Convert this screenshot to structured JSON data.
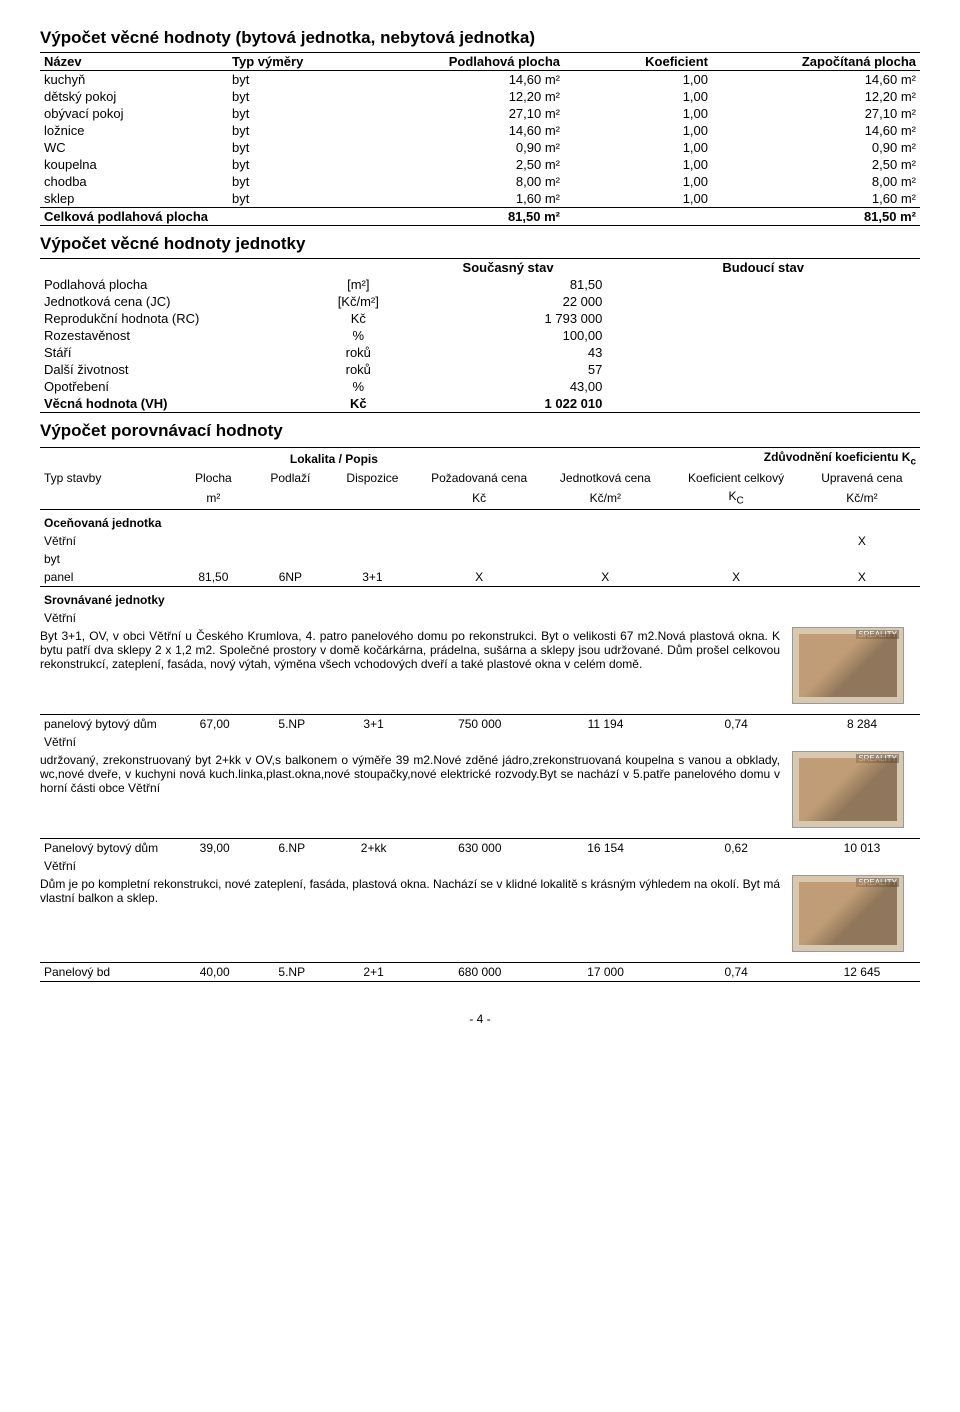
{
  "section1": {
    "title": "Výpočet věcné hodnoty (bytová jednotka, nebytová jednotka)",
    "headers": [
      "Název",
      "Typ výměry",
      "Podlahová plocha",
      "Koeficient",
      "Započítaná plocha"
    ],
    "rows": [
      {
        "n": "kuchyň",
        "t": "byt",
        "p": "14,60 m²",
        "k": "1,00",
        "z": "14,60 m²"
      },
      {
        "n": "dětský pokoj",
        "t": "byt",
        "p": "12,20 m²",
        "k": "1,00",
        "z": "12,20 m²"
      },
      {
        "n": "obývací pokoj",
        "t": "byt",
        "p": "27,10 m²",
        "k": "1,00",
        "z": "27,10 m²"
      },
      {
        "n": "ložnice",
        "t": "byt",
        "p": "14,60 m²",
        "k": "1,00",
        "z": "14,60 m²"
      },
      {
        "n": "WC",
        "t": "byt",
        "p": "0,90 m²",
        "k": "1,00",
        "z": "0,90 m²"
      },
      {
        "n": "koupelna",
        "t": "byt",
        "p": "2,50 m²",
        "k": "1,00",
        "z": "2,50 m²"
      },
      {
        "n": "chodba",
        "t": "byt",
        "p": "8,00 m²",
        "k": "1,00",
        "z": "8,00 m²"
      },
      {
        "n": "sklep",
        "t": "byt",
        "p": "1,60 m²",
        "k": "1,00",
        "z": "1,60 m²"
      }
    ],
    "sum": {
      "n": "Celková podlahová plocha",
      "p": "81,50 m²",
      "z": "81,50 m²"
    }
  },
  "section2": {
    "title": "Výpočet věcné hodnoty jednotky",
    "colA": "Současný stav",
    "colB": "Budoucí stav",
    "rows": [
      {
        "l": "Podlahová plocha",
        "u": "[m²]",
        "v": "81,50"
      },
      {
        "l": "Jednotková cena (JC)",
        "u": "[Kč/m²]",
        "v": "22 000"
      },
      {
        "l": "Reprodukční hodnota (RC)",
        "u": "Kč",
        "v": "1 793 000"
      },
      {
        "l": "Rozestavěnost",
        "u": "%",
        "v": "100,00"
      },
      {
        "l": "Stáří",
        "u": "roků",
        "v": "43"
      },
      {
        "l": "Další životnost",
        "u": "roků",
        "v": "57"
      },
      {
        "l": "Opotřebení",
        "u": "%",
        "v": "43,00"
      }
    ],
    "final": {
      "l": "Věcná hodnota (VH)",
      "u": "Kč",
      "v": "1 022 010"
    }
  },
  "section3": {
    "title": "Výpočet porovnávací hodnoty",
    "lokalita_label": "Lokalita / Popis",
    "koef_label": "Zdůvodnění koeficientu K",
    "koef_sub": "c",
    "headers": [
      "Typ stavby",
      "Plocha",
      "Podlaží",
      "Dispozice",
      "Požadovaná cena",
      "Jednotková cena",
      "Koeficient celkový",
      "Upravená cena"
    ],
    "units": [
      "",
      "m²",
      "",
      "",
      "Kč",
      "Kč/m²",
      "K",
      "Kč/m²"
    ],
    "unit_sub": "C",
    "ocen_label": "Oceňovaná jednotka",
    "srov_label": "Srovnávané jednotky",
    "vetrni": "Větřní",
    "byt": "byt",
    "panel_row": {
      "typ": "panel",
      "pl": "81,50",
      "pod": "6NP",
      "disp": "3+1",
      "poz": "X",
      "jc": "X",
      "kc": "X",
      "uc": "X"
    },
    "ocen_x": "X",
    "comps": [
      {
        "row": {
          "typ": "panelový bytový dům",
          "pl": "67,00",
          "pod": "5.NP",
          "disp": "3+1",
          "poz": "750 000",
          "jc": "11 194",
          "kc": "0,74",
          "uc": "8 284"
        },
        "loc": "Větřní",
        "desc": "Byt 3+1, OV, v obci Větřní u Českého Krumlova, 4. patro panelového domu po rekonstrukci. Byt o velikosti 67 m2.Nová plastová okna. K bytu patří dva sklepy 2 x 1,2 m2. Společné prostory v domě kočárkárna, prádelna, sušárna a sklepy jsou udržované. Dům prošel celkovou rekonstrukcí, zateplení, fasáda, nový výtah, výměna všech vchodových dveří a také plastové okna v celém domě."
      },
      {
        "row": {
          "typ": "Panelový bytový dům",
          "pl": "39,00",
          "pod": "6.NP",
          "disp": "2+kk",
          "poz": "630 000",
          "jc": "16 154",
          "kc": "0,62",
          "uc": "10 013"
        },
        "loc": "Větřní",
        "desc": "udržovaný, zrekonstruovaný byt 2+kk v OV,s balkonem o výměře 39 m2.Nové zděné jádro,zrekonstruovaná koupelna s vanou a obklady, wc,nové dveře, v kuchyni nová kuch.linka,plast.okna,nové stoupačky,nové elektrické rozvody.Byt se nachází v 5.patře panelového domu v horní části obce Větřní"
      },
      {
        "row": {
          "typ": "Panelový bd",
          "pl": "40,00",
          "pod": "5.NP",
          "disp": "2+1",
          "poz": "680 000",
          "jc": "17 000",
          "kc": "0,74",
          "uc": "12 645"
        },
        "loc": "Větřní",
        "desc": "Dům je po kompletní rekonstrukci, nové zateplení, fasáda, plastová okna. Nachází se v klidné lokalitě s krásným výhledem na okolí. Byt má vlastní balkon a sklep."
      }
    ]
  },
  "footer": "- 4 -"
}
